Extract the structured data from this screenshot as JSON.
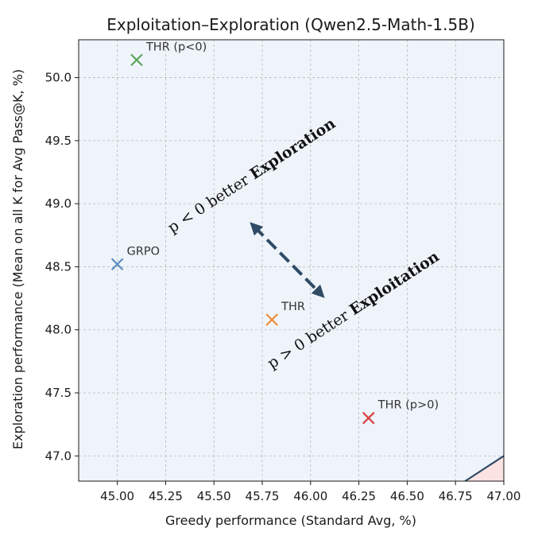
{
  "chart_data": {
    "type": "scatter",
    "title": "Exploitation–Exploration (Qwen2.5-Math-1.5B)",
    "xlabel": "Greedy performance (Standard Avg, %)",
    "ylabel": "Exploration performance (Mean on all K for Avg Pass@K, %)",
    "xlim": [
      44.8,
      47.0
    ],
    "ylim": [
      46.8,
      50.3
    ],
    "xticks": [
      45.0,
      45.25,
      45.5,
      45.75,
      46.0,
      46.25,
      46.5,
      46.75,
      47.0
    ],
    "xtick_labels": [
      "45.00",
      "45.25",
      "45.50",
      "45.75",
      "46.00",
      "46.25",
      "46.50",
      "46.75",
      "47.00"
    ],
    "yticks": [
      47.0,
      47.5,
      48.0,
      48.5,
      49.0,
      49.5,
      50.0
    ],
    "ytick_labels": [
      "47.0",
      "47.5",
      "48.0",
      "48.5",
      "49.0",
      "49.5",
      "50.0"
    ],
    "grid": true,
    "points": [
      {
        "label": "THR (p<0)",
        "x": 45.1,
        "y": 50.14,
        "color": "#5aa55a"
      },
      {
        "label": "GRPO",
        "x": 45.0,
        "y": 48.52,
        "color": "#5b8ec1"
      },
      {
        "label": "THR",
        "x": 45.8,
        "y": 48.08,
        "color": "#f08a33"
      },
      {
        "label": "THR (p>0)",
        "x": 46.3,
        "y": 47.3,
        "color": "#d94040"
      }
    ],
    "regions": {
      "upper": {
        "prefix": "p < 0 better ",
        "emphasis": "Exploration",
        "color": "#eef4fa"
      },
      "lower": {
        "prefix": "p > 0 better ",
        "emphasis": "Exploitation",
        "color": "#fbe3e3"
      }
    },
    "diagonal_color": "#2f4b66",
    "arrow_color": "#2f4b66"
  }
}
